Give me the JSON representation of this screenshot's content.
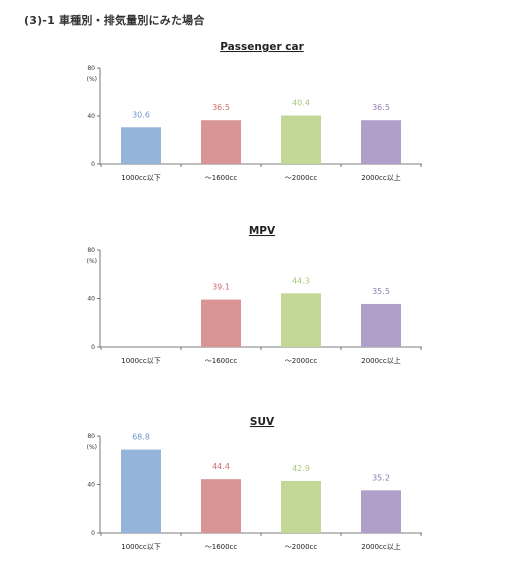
{
  "page": {
    "title": "(3)-1 車種別・排気量別にみた場合"
  },
  "chart_data": [
    {
      "type": "bar",
      "title": "Passenger car",
      "ylabel": "(%)",
      "ylim": [
        0,
        80
      ],
      "yticks": [
        "80",
        "40",
        "0"
      ],
      "categories": [
        "1000cc以下",
        "～1600cc",
        "～2000cc",
        "2000cc以上"
      ],
      "values": [
        30.6,
        36.5,
        40.4,
        36.5
      ],
      "labels": [
        "30.6",
        "36.5",
        "40.4",
        "36.5"
      ],
      "bar_colors": [
        "#94b4d9",
        "#d99596",
        "#c3d897",
        "#b09fc8"
      ],
      "label_colors": [
        "#6f96c8",
        "#d26b6c",
        "#a9c67b",
        "#8f7bb3"
      ]
    },
    {
      "type": "bar",
      "title": "MPV",
      "ylabel": "(%)",
      "ylim": [
        0,
        80
      ],
      "yticks": [
        "80",
        "40",
        "0"
      ],
      "categories": [
        "1000cc以下",
        "～1600cc",
        "～2000cc",
        "2000cc以上"
      ],
      "values": [
        null,
        39.1,
        44.3,
        35.5
      ],
      "labels": [
        "",
        "39.1",
        "44.3",
        "35.5"
      ],
      "bar_colors": [
        "#94b4d9",
        "#d99596",
        "#c3d897",
        "#b09fc8"
      ],
      "label_colors": [
        "#6f96c8",
        "#d26b6c",
        "#a9c67b",
        "#8f7bb3"
      ]
    },
    {
      "type": "bar",
      "title": "SUV",
      "ylabel": "(%)",
      "ylim": [
        0,
        80
      ],
      "yticks": [
        "80",
        "40",
        "0"
      ],
      "categories": [
        "1000cc以下",
        "～1600cc",
        "～2000cc",
        "2000cc以上"
      ],
      "values": [
        68.8,
        44.4,
        42.9,
        35.2
      ],
      "labels": [
        "68.8",
        "44.4",
        "42.9",
        "35.2"
      ],
      "bar_colors": [
        "#94b4d9",
        "#d99596",
        "#c3d897",
        "#b09fc8"
      ],
      "label_colors": [
        "#6f96c8",
        "#d26b6c",
        "#a9c67b",
        "#8f7bb3"
      ]
    }
  ]
}
